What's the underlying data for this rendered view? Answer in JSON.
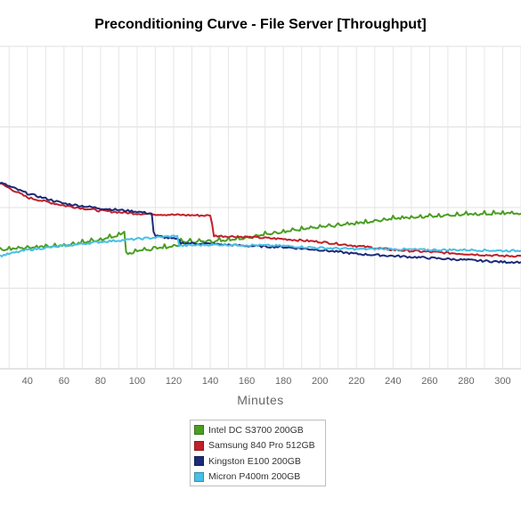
{
  "chart_data": {
    "type": "line",
    "title": "Preconditioning Curve - File Server [Throughput]",
    "xlabel": "Minutes",
    "ylabel": "",
    "xlim": [
      25,
      310
    ],
    "ylim": [
      0,
      8
    ],
    "xticks": [
      40,
      60,
      80,
      100,
      120,
      140,
      160,
      180,
      200,
      220,
      240,
      260,
      280,
      300
    ],
    "grid": true,
    "legend_position": "bottom",
    "series": [
      {
        "name": "Intel DC S3700 200GB",
        "color": "#4a9e22",
        "x": [
          25,
          40,
          60,
          80,
          90,
          93,
          94,
          110,
          123,
          124,
          140,
          160,
          180,
          200,
          220,
          240,
          260,
          280,
          300,
          310
        ],
        "y": [
          2.95,
          3.0,
          3.05,
          3.2,
          3.3,
          3.4,
          2.85,
          2.98,
          3.05,
          3.15,
          3.15,
          3.25,
          3.4,
          3.5,
          3.6,
          3.72,
          3.78,
          3.82,
          3.85,
          3.85
        ]
      },
      {
        "name": "Samsung 840 Pro 512GB",
        "color": "#c0202a",
        "x": [
          25,
          40,
          60,
          80,
          100,
          120,
          140,
          141,
          142,
          160,
          180,
          200,
          220,
          240,
          260,
          280,
          300,
          310
        ],
        "y": [
          4.6,
          4.25,
          4.05,
          3.92,
          3.85,
          3.82,
          3.8,
          3.6,
          3.3,
          3.27,
          3.22,
          3.15,
          3.05,
          2.95,
          2.9,
          2.85,
          2.8,
          2.8
        ]
      },
      {
        "name": "Kingston E100 200GB",
        "color": "#1c2a78",
        "x": [
          25,
          40,
          60,
          80,
          100,
          108,
          109,
          110,
          123,
          124,
          140,
          160,
          180,
          200,
          220,
          240,
          260,
          280,
          300,
          310
        ],
        "y": [
          4.62,
          4.35,
          4.1,
          3.98,
          3.9,
          3.85,
          3.4,
          3.3,
          3.2,
          3.12,
          3.1,
          3.05,
          3.02,
          2.95,
          2.85,
          2.8,
          2.75,
          2.7,
          2.65,
          2.65
        ]
      },
      {
        "name": "Micron P400m 200GB",
        "color": "#48bfe6",
        "x": [
          25,
          40,
          60,
          80,
          100,
          122,
          123,
          140,
          160,
          180,
          200,
          220,
          240,
          260,
          280,
          300,
          310
        ],
        "y": [
          2.8,
          2.95,
          3.05,
          3.15,
          3.22,
          3.3,
          3.05,
          3.08,
          3.07,
          3.05,
          3.0,
          2.97,
          2.97,
          2.95,
          2.95,
          2.93,
          2.93
        ]
      }
    ]
  }
}
